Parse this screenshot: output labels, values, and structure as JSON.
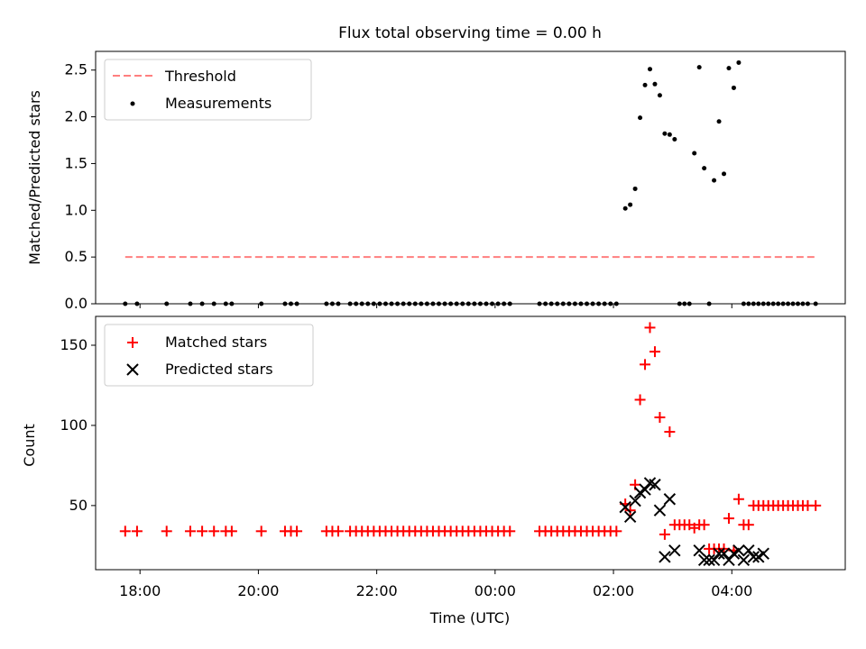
{
  "title": "Flux total observing time = 0.00 h",
  "colors": {
    "threshold": "#ff7f7f",
    "measurements": "#000000",
    "matched": "#ff0000",
    "predicted": "#000000"
  },
  "chart_data": [
    {
      "type": "scatter",
      "title": "Flux total observing time = 0.00 h",
      "ylabel": "Matched/Predicted stars",
      "xlabel": "",
      "x_range": [
        "17:15",
        "05:55"
      ],
      "ylim": [
        0,
        2.7
      ],
      "yticks": [
        "0.0",
        "0.5",
        "1.0",
        "1.5",
        "2.0",
        "2.5"
      ],
      "ytick_values": [
        0,
        0.5,
        1.0,
        1.5,
        2.0,
        2.5
      ],
      "legend_position": "top-left",
      "legend": [
        "Threshold",
        "Measurements"
      ],
      "series": [
        {
          "name": "Threshold",
          "kind": "dashed-line",
          "x": [
            "17:45",
            "05:25"
          ],
          "y": [
            0.5,
            0.5
          ]
        },
        {
          "name": "Measurements",
          "kind": "dots",
          "x": [
            "17:45",
            "17:57",
            "18:27",
            "18:51",
            "19:03",
            "19:15",
            "19:27",
            "19:33",
            "20:03",
            "20:27",
            "20:33",
            "20:39",
            "21:09",
            "21:15",
            "21:21",
            "21:33",
            "21:39",
            "21:45",
            "21:51",
            "21:57",
            "22:03",
            "22:09",
            "22:15",
            "22:21",
            "22:27",
            "22:33",
            "22:39",
            "22:45",
            "22:51",
            "22:57",
            "23:03",
            "23:09",
            "23:15",
            "23:21",
            "23:27",
            "23:33",
            "23:39",
            "23:45",
            "23:51",
            "23:57",
            "00:03",
            "00:09",
            "00:15",
            "00:45",
            "00:51",
            "00:57",
            "01:03",
            "01:09",
            "01:15",
            "01:21",
            "01:27",
            "01:33",
            "01:39",
            "01:45",
            "01:51",
            "01:57",
            "02:03",
            "02:12",
            "02:17",
            "02:22",
            "02:27",
            "02:32",
            "02:37",
            "02:42",
            "02:47",
            "02:52",
            "02:57",
            "03:02",
            "03:07",
            "03:12",
            "03:17",
            "03:22",
            "03:27",
            "03:32",
            "03:37",
            "03:42",
            "03:47",
            "03:52",
            "03:57",
            "04:02",
            "04:07",
            "04:12",
            "04:17",
            "04:22",
            "04:27",
            "04:32",
            "04:37",
            "04:42",
            "04:47",
            "04:52",
            "04:57",
            "05:02",
            "05:07",
            "05:12",
            "05:17",
            "05:25"
          ],
          "y": [
            0,
            0,
            0,
            0,
            0,
            0,
            0,
            0,
            0,
            0,
            0,
            0,
            0,
            0,
            0,
            0,
            0,
            0,
            0,
            0,
            0,
            0,
            0,
            0,
            0,
            0,
            0,
            0,
            0,
            0,
            0,
            0,
            0,
            0,
            0,
            0,
            0,
            0,
            0,
            0,
            0,
            0,
            0,
            0,
            0,
            0,
            0,
            0,
            0,
            0,
            0,
            0,
            0,
            0,
            0,
            0,
            0,
            1.02,
            1.06,
            1.23,
            1.99,
            2.34,
            2.51,
            2.35,
            2.23,
            1.82,
            1.81,
            1.76,
            0,
            0,
            0,
            1.61,
            2.53,
            1.45,
            0,
            1.32,
            1.95,
            1.39,
            2.52,
            2.31,
            2.58,
            0,
            0,
            0,
            0,
            0,
            0,
            0,
            0,
            0,
            0,
            0,
            0,
            0,
            0,
            0
          ]
        }
      ]
    },
    {
      "type": "scatter",
      "title": "",
      "ylabel": "Count",
      "xlabel": "Time (UTC)",
      "x_range": [
        "17:15",
        "05:55"
      ],
      "ylim": [
        10,
        168
      ],
      "yticks": [
        "50",
        "100",
        "150"
      ],
      "ytick_values": [
        50,
        100,
        150
      ],
      "xticks": [
        "18:00",
        "20:00",
        "22:00",
        "00:00",
        "02:00",
        "04:00"
      ],
      "legend_position": "top-left",
      "legend": [
        "Matched stars",
        "Predicted stars"
      ],
      "series": [
        {
          "name": "Matched stars",
          "kind": "plus",
          "x": [
            "17:45",
            "17:57",
            "18:27",
            "18:51",
            "19:03",
            "19:15",
            "19:27",
            "19:33",
            "20:03",
            "20:27",
            "20:33",
            "20:39",
            "21:09",
            "21:15",
            "21:21",
            "21:33",
            "21:39",
            "21:45",
            "21:51",
            "21:57",
            "22:03",
            "22:09",
            "22:15",
            "22:21",
            "22:27",
            "22:33",
            "22:39",
            "22:45",
            "22:51",
            "22:57",
            "23:03",
            "23:09",
            "23:15",
            "23:21",
            "23:27",
            "23:33",
            "23:39",
            "23:45",
            "23:51",
            "23:57",
            "00:03",
            "00:09",
            "00:15",
            "00:45",
            "00:51",
            "00:57",
            "01:03",
            "01:09",
            "01:15",
            "01:21",
            "01:27",
            "01:33",
            "01:39",
            "01:45",
            "01:51",
            "01:57",
            "02:03",
            "02:12",
            "02:17",
            "02:22",
            "02:27",
            "02:32",
            "02:37",
            "02:42",
            "02:47",
            "02:52",
            "02:57",
            "03:02",
            "03:07",
            "03:12",
            "03:17",
            "03:22",
            "03:27",
            "03:32",
            "03:37",
            "03:42",
            "03:47",
            "03:52",
            "03:57",
            "04:02",
            "04:07",
            "04:12",
            "04:17",
            "04:22",
            "04:27",
            "04:32",
            "04:37",
            "04:42",
            "04:47",
            "04:52",
            "04:57",
            "05:02",
            "05:07",
            "05:12",
            "05:17",
            "05:25"
          ],
          "y": [
            34,
            34,
            34,
            34,
            34,
            34,
            34,
            34,
            34,
            34,
            34,
            34,
            34,
            34,
            34,
            34,
            34,
            34,
            34,
            34,
            34,
            34,
            34,
            34,
            34,
            34,
            34,
            34,
            34,
            34,
            34,
            34,
            34,
            34,
            34,
            34,
            34,
            34,
            34,
            34,
            34,
            34,
            34,
            34,
            34,
            34,
            34,
            34,
            34,
            34,
            34,
            34,
            34,
            34,
            34,
            34,
            34,
            51,
            47,
            63,
            116,
            138,
            161,
            146,
            105,
            32,
            96,
            38,
            38,
            38,
            38,
            36,
            38,
            38,
            23,
            23,
            23,
            23,
            42,
            22,
            54,
            38,
            38,
            50,
            50,
            50,
            50,
            50,
            50,
            50,
            50,
            50,
            50,
            50,
            50,
            50
          ]
        },
        {
          "name": "Predicted stars",
          "kind": "cross",
          "x": [
            "02:12",
            "02:17",
            "02:22",
            "02:27",
            "02:32",
            "02:37",
            "02:42",
            "02:47",
            "02:52",
            "02:57",
            "03:02",
            "03:27",
            "03:32",
            "03:37",
            "03:42",
            "03:47",
            "03:52",
            "03:57",
            "04:02",
            "04:07",
            "04:12",
            "04:17",
            "04:22",
            "04:27",
            "04:32"
          ],
          "y": [
            49,
            43,
            53,
            58,
            60,
            64,
            63,
            47,
            18,
            54,
            22,
            22,
            16,
            16,
            16,
            20,
            20,
            16,
            20,
            22,
            16,
            22,
            18,
            18,
            20
          ]
        }
      ]
    }
  ]
}
